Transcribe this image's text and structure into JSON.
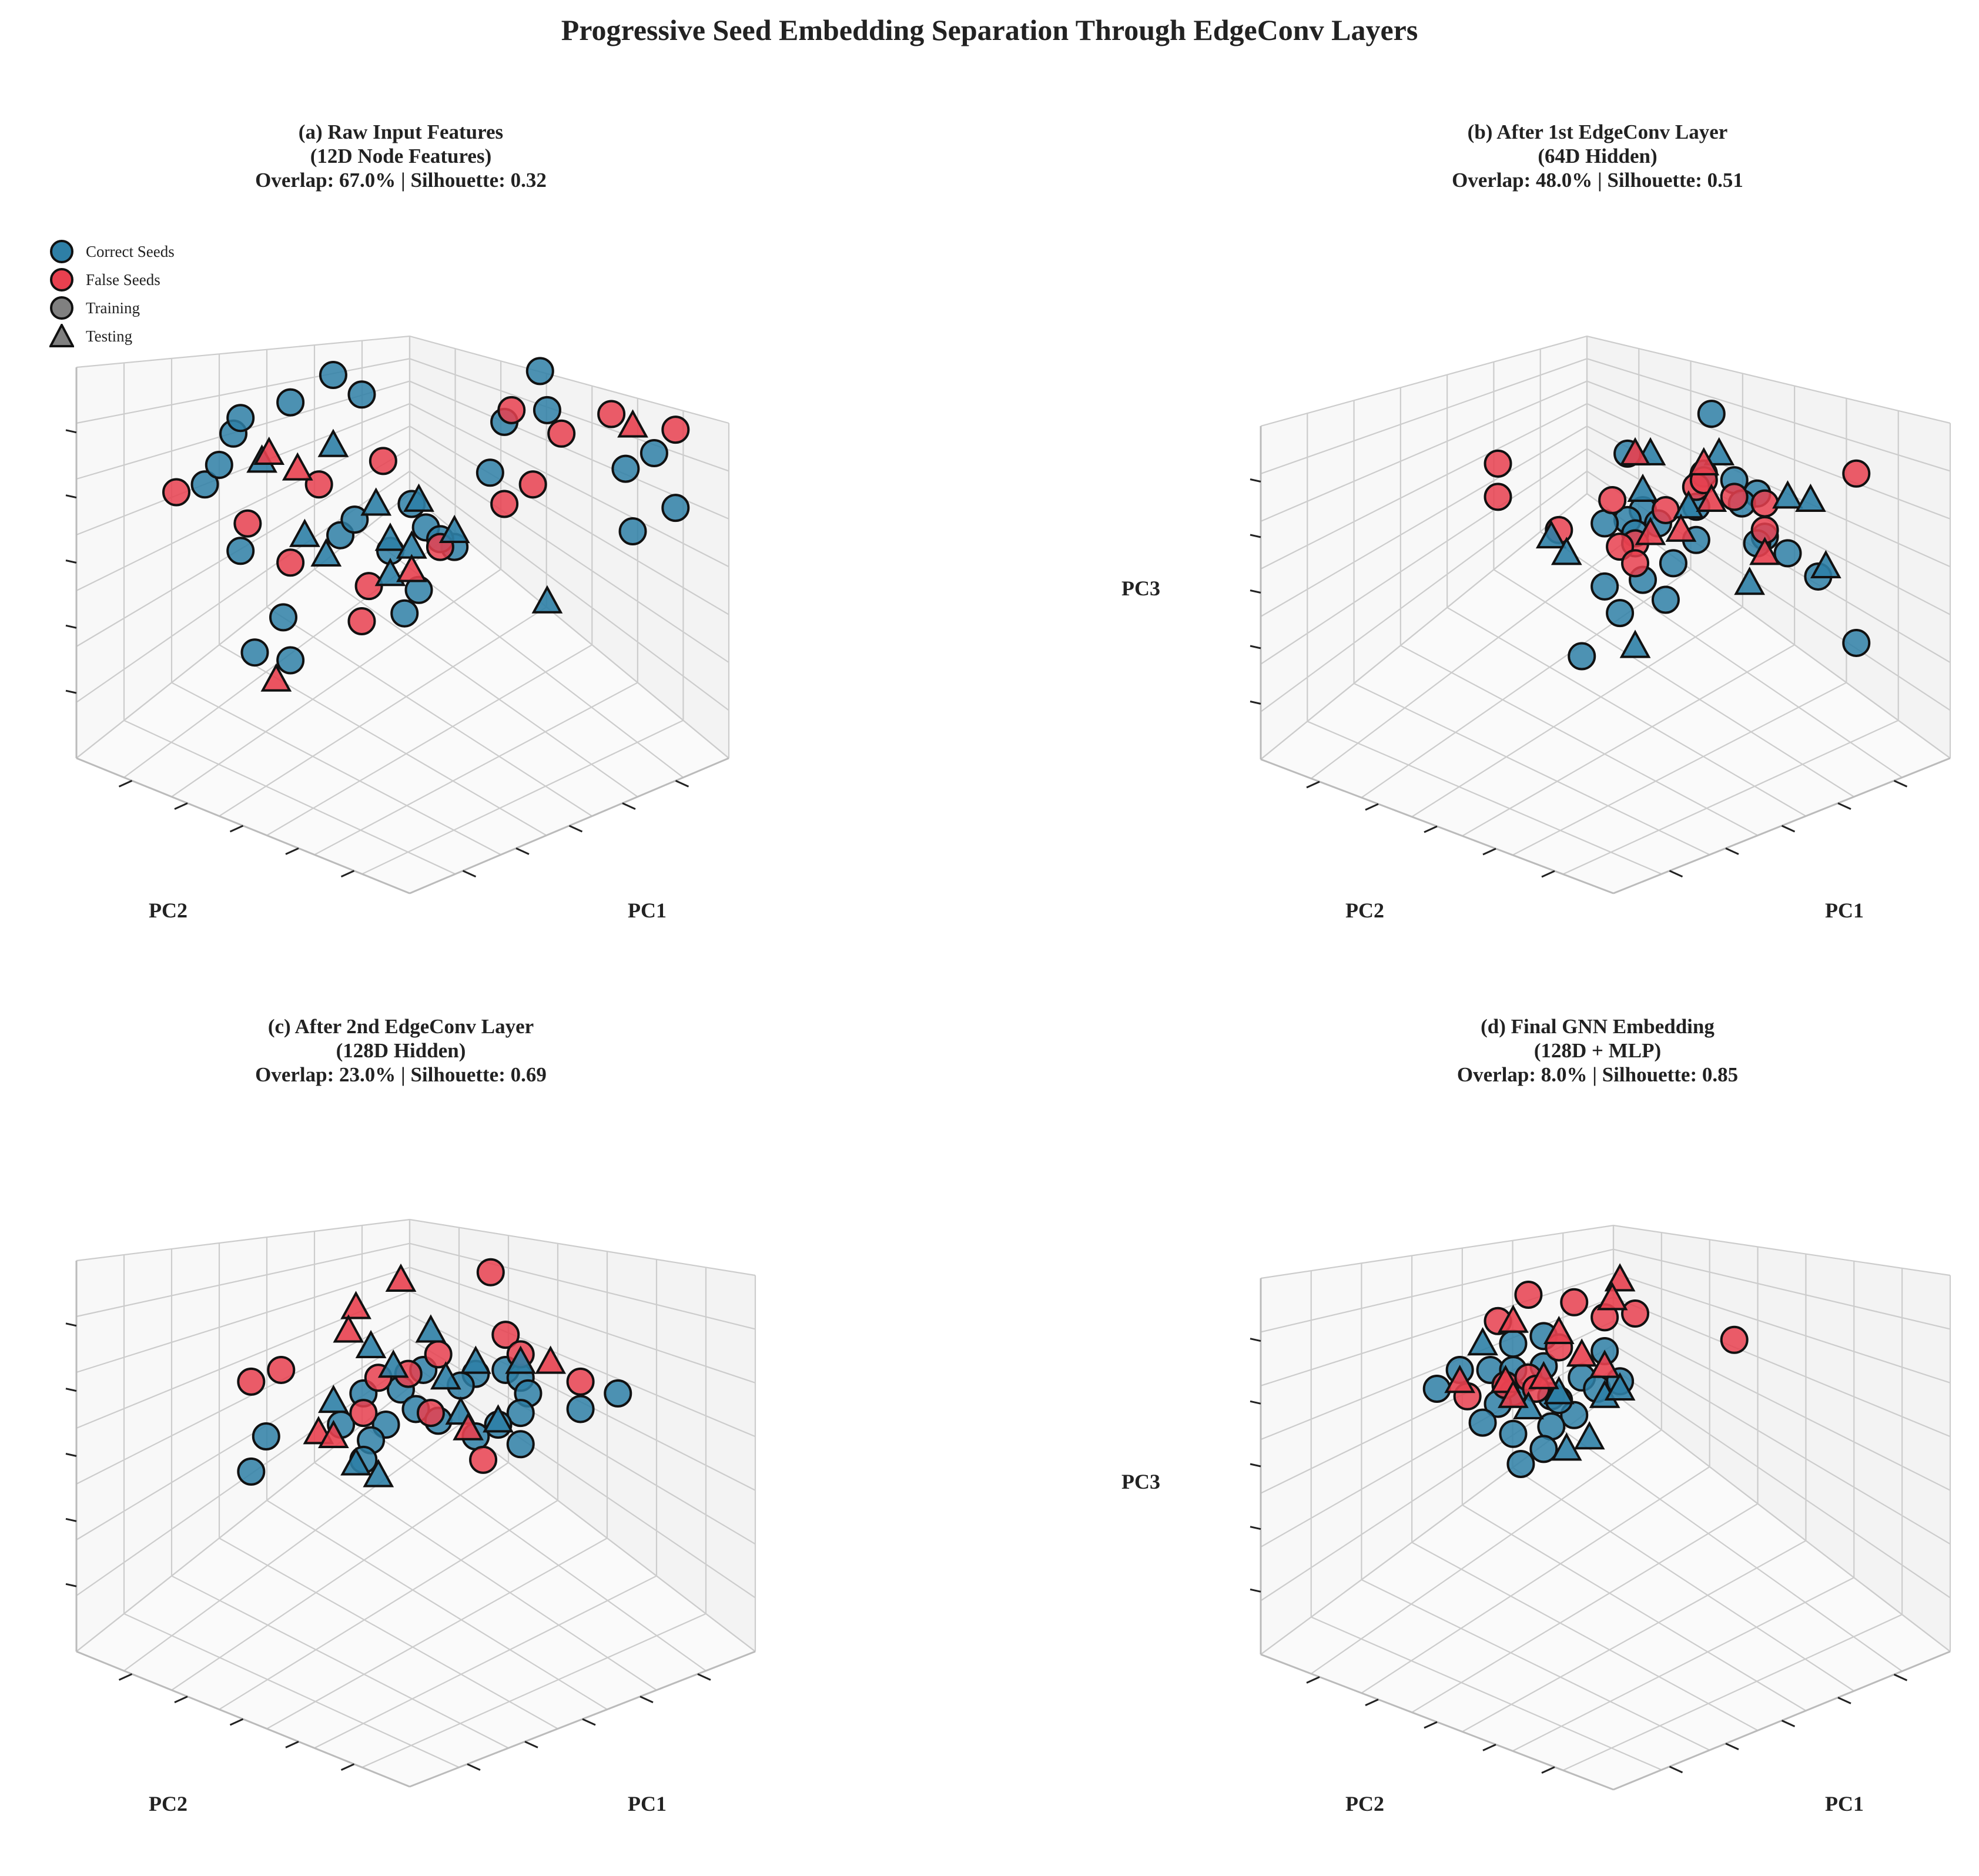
{
  "figure": {
    "title": "Progressive Seed Embedding Separation Through EdgeConv Layers"
  },
  "legend": {
    "correct_label": "Correct Seeds",
    "false_label": "False Seeds",
    "training_label": "Training",
    "testing_label": "Testing"
  },
  "colors": {
    "correct": "#2e7fa6",
    "false": "#e8404f",
    "neutral": "#808080",
    "edge": "#111111",
    "grid": "#cccccc",
    "pane": "#f8f8f8"
  },
  "panels": [
    {
      "title_line1": "(a) Raw Input Features",
      "title_line2": "(12D Node Features)",
      "title_line3": "Overlap: 67.0% | Silhouette: 0.32",
      "xlabel": "PC1",
      "ylabel": "PC2",
      "zlabel": "",
      "show_legend": true
    },
    {
      "title_line1": "(b) After 1st EdgeConv Layer",
      "title_line2": "(64D Hidden)",
      "title_line3": "Overlap: 48.0% | Silhouette: 0.51",
      "xlabel": "PC1",
      "ylabel": "PC2",
      "zlabel": "PC3",
      "show_legend": false
    },
    {
      "title_line1": "(c) After 2nd EdgeConv Layer",
      "title_line2": "(128D Hidden)",
      "title_line3": "Overlap: 23.0% | Silhouette: 0.69",
      "xlabel": "PC1",
      "ylabel": "PC2",
      "zlabel": "",
      "show_legend": false
    },
    {
      "title_line1": "(d) Final GNN Embedding",
      "title_line2": "(128D + MLP)",
      "title_line3": "Overlap: 8.0% | Silhouette: 0.85",
      "xlabel": "PC1",
      "ylabel": "PC2",
      "zlabel": "PC3",
      "show_legend": false
    }
  ],
  "chart_data": [
    {
      "type": "scatter",
      "projection": "3d",
      "title": "(a) Raw Input Features (12D Node Features) Overlap: 67.0% | Silhouette: 0.32",
      "xlabel": "PC1",
      "ylabel": "PC2",
      "zlabel": "",
      "view": "elev 20, azim 45",
      "series": [
        {
          "name": "Correct Seeds - Training",
          "marker": "circle",
          "points": [
            [
              3.2,
              2.2
            ],
            [
              3.4,
              2.8
            ],
            [
              3.0,
              3.8
            ],
            [
              3.9,
              3.9
            ],
            [
              3.3,
              5.0
            ],
            [
              2.3,
              4.2
            ],
            [
              3.5,
              4.4
            ],
            [
              2.5,
              4.6
            ],
            [
              1.5,
              2.1
            ],
            [
              1.6,
              1.0
            ],
            [
              0.4,
              5.5
            ],
            [
              0.6,
              6.0
            ],
            [
              0.8,
              6.8
            ],
            [
              0.9,
              7.2
            ],
            [
              1.6,
              7.6
            ],
            [
              2.2,
              8.3
            ],
            [
              2.6,
              7.8
            ],
            [
              1.1,
              1.2
            ],
            [
              0.9,
              3.8
            ],
            [
              4.6,
              7.1
            ],
            [
              5.2,
              7.4
            ],
            [
              5.1,
              8.4
            ],
            [
              6.7,
              6.3
            ],
            [
              6.3,
              5.9
            ],
            [
              7.0,
              4.9
            ],
            [
              6.4,
              4.3
            ],
            [
              4.4,
              5.8
            ],
            [
              3.7,
              4.1
            ]
          ]
        },
        {
          "name": "False Seeds - Training",
          "marker": "circle",
          "points": [
            [
              4.7,
              7.4
            ],
            [
              2.9,
              6.1
            ],
            [
              5.4,
              6.8
            ],
            [
              6.1,
              7.3
            ],
            [
              7.0,
              6.9
            ],
            [
              5.0,
              5.5
            ],
            [
              4.6,
              5.0
            ],
            [
              3.7,
              3.9
            ],
            [
              2.7,
              2.9
            ],
            [
              2.6,
              2.0
            ],
            [
              1.6,
              3.5
            ],
            [
              0.0,
              5.3
            ],
            [
              1.0,
              4.5
            ],
            [
              2.0,
              5.5
            ]
          ]
        },
        {
          "name": "Correct Seeds - Testing",
          "marker": "triangle",
          "points": [
            [
              1.2,
              6.1
            ],
            [
              1.8,
              4.2
            ],
            [
              2.1,
              3.7
            ],
            [
              2.8,
              5.0
            ],
            [
              3.0,
              4.1
            ],
            [
              3.3,
              3.9
            ],
            [
              3.4,
              5.1
            ],
            [
              3.9,
              4.3
            ],
            [
              2.2,
              6.5
            ],
            [
              5.2,
              2.5
            ],
            [
              3.0,
              3.2
            ]
          ]
        },
        {
          "name": "False Seeds - Testing",
          "marker": "triangle",
          "points": [
            [
              1.3,
              6.3
            ],
            [
              1.7,
              5.9
            ],
            [
              6.4,
              7.0
            ],
            [
              3.3,
              3.3
            ],
            [
              1.4,
              0.5
            ]
          ]
        }
      ]
    },
    {
      "type": "scatter",
      "projection": "3d",
      "title": "(b) After 1st EdgeConv Layer (64D Hidden) Overlap: 48.0% | Silhouette: 0.51",
      "xlabel": "PC1",
      "ylabel": "PC2",
      "zlabel": "PC3",
      "view": "elev 20, azim 45",
      "series": [
        {
          "name": "Correct Seeds - Training",
          "marker": "circle",
          "points": [
            [
              4.6,
              8.6
            ],
            [
              3.5,
              7.4
            ],
            [
              4.5,
              6.8
            ],
            [
              4.9,
              6.6
            ],
            [
              5.2,
              6.2
            ],
            [
              5.0,
              5.9
            ],
            [
              4.4,
              5.8
            ],
            [
              3.7,
              5.7
            ],
            [
              3.5,
              5.4
            ],
            [
              3.2,
              5.3
            ],
            [
              3.9,
              5.3
            ],
            [
              3.6,
              5.0
            ],
            [
              4.4,
              4.8
            ],
            [
              5.3,
              4.9
            ],
            [
              5.6,
              4.4
            ],
            [
              4.1,
              4.1
            ],
            [
              3.7,
              3.6
            ],
            [
              3.2,
              3.4
            ],
            [
              6.0,
              3.7
            ],
            [
              5.2,
              4.7
            ],
            [
              3.4,
              2.6
            ],
            [
              2.9,
              1.3
            ],
            [
              6.5,
              1.7
            ],
            [
              4.0,
              3.0
            ]
          ]
        },
        {
          "name": "False Seeds - Training",
          "marker": "circle",
          "points": [
            [
              1.8,
              7.1
            ],
            [
              1.8,
              6.1
            ],
            [
              4.4,
              6.4
            ],
            [
              4.5,
              6.6
            ],
            [
              3.3,
              6.0
            ],
            [
              4.9,
              6.1
            ],
            [
              5.3,
              5.9
            ],
            [
              4.0,
              5.7
            ],
            [
              5.3,
              5.1
            ],
            [
              3.6,
              4.7
            ],
            [
              2.6,
              5.1
            ],
            [
              3.4,
              4.6
            ],
            [
              3.6,
              4.1
            ],
            [
              6.5,
              6.8
            ]
          ]
        },
        {
          "name": "Correct Seeds - Testing",
          "marker": "triangle",
          "points": [
            [
              3.7,
              6.3
            ],
            [
              3.8,
              7.4
            ],
            [
              4.7,
              7.4
            ],
            [
              4.3,
              5.8
            ],
            [
              5.6,
              6.1
            ],
            [
              5.9,
              6.0
            ],
            [
              2.5,
              4.9
            ],
            [
              2.7,
              4.4
            ],
            [
              6.1,
              4.0
            ],
            [
              5.1,
              3.5
            ],
            [
              3.6,
              1.6
            ]
          ]
        },
        {
          "name": "False Seeds - Testing",
          "marker": "triangle",
          "points": [
            [
              3.6,
              7.4
            ],
            [
              4.5,
              7.1
            ],
            [
              4.6,
              6.0
            ],
            [
              3.8,
              5.0
            ],
            [
              4.2,
              5.1
            ],
            [
              5.3,
              4.4
            ]
          ]
        }
      ]
    },
    {
      "type": "scatter",
      "projection": "3d",
      "title": "(c) After 2nd EdgeConv Layer (128D Hidden) Overlap: 23.0% | Silhouette: 0.69",
      "xlabel": "PC1",
      "ylabel": "PC2",
      "zlabel": "",
      "view": "elev 20, azim 45",
      "series": [
        {
          "name": "Correct Seeds - Training",
          "marker": "circle",
          "points": [
            [
              3.3,
              5.7
            ],
            [
              4.0,
              5.6
            ],
            [
              4.4,
              5.7
            ],
            [
              4.6,
              5.5
            ],
            [
              3.8,
              5.3
            ],
            [
              3.0,
              5.2
            ],
            [
              2.5,
              5.1
            ],
            [
              4.7,
              5.1
            ],
            [
              4.6,
              4.6
            ],
            [
              3.2,
              4.7
            ],
            [
              3.5,
              4.4
            ],
            [
              2.8,
              4.3
            ],
            [
              4.0,
              4.0
            ],
            [
              4.3,
              4.3
            ],
            [
              4.6,
              3.8
            ],
            [
              2.6,
              3.9
            ],
            [
              2.2,
              4.3
            ],
            [
              2.5,
              3.4
            ],
            [
              1.2,
              4.0
            ],
            [
              1.0,
              3.1
            ],
            [
              5.9,
              5.1
            ],
            [
              5.4,
              4.7
            ]
          ]
        },
        {
          "name": "False Seeds - Training",
          "marker": "circle",
          "points": [
            [
              4.2,
              8.2
            ],
            [
              4.4,
              6.6
            ],
            [
              4.6,
              6.1
            ],
            [
              3.5,
              6.1
            ],
            [
              3.1,
              5.6
            ],
            [
              2.7,
              5.5
            ],
            [
              1.4,
              5.7
            ],
            [
              1.0,
              5.4
            ],
            [
              2.5,
              4.6
            ],
            [
              3.4,
              4.6
            ],
            [
              4.1,
              3.4
            ],
            [
              5.4,
              5.4
            ]
          ]
        },
        {
          "name": "Correct Seeds - Testing",
          "marker": "triangle",
          "points": [
            [
              3.4,
              6.7
            ],
            [
              2.6,
              6.3
            ],
            [
              2.9,
              5.8
            ],
            [
              4.6,
              5.9
            ],
            [
              4.0,
              5.9
            ],
            [
              3.6,
              5.5
            ],
            [
              2.1,
              4.9
            ],
            [
              4.3,
              4.4
            ],
            [
              2.7,
              3.0
            ],
            [
              2.4,
              3.3
            ],
            [
              3.8,
              4.6
            ]
          ]
        },
        {
          "name": "False Seeds - Testing",
          "marker": "triangle",
          "points": [
            [
              3.0,
              8.0
            ],
            [
              2.4,
              7.3
            ],
            [
              2.3,
              6.7
            ],
            [
              5.0,
              5.9
            ],
            [
              1.9,
              4.1
            ],
            [
              2.1,
              4.0
            ],
            [
              3.9,
              4.2
            ]
          ]
        }
      ]
    },
    {
      "type": "scatter",
      "projection": "3d",
      "title": "(d) Final GNN Embedding (128D + MLP) Overlap: 8.0% | Silhouette: 0.85",
      "xlabel": "PC1",
      "ylabel": "PC2",
      "zlabel": "PC3",
      "view": "elev 20, azim 45",
      "series": [
        {
          "name": "Correct Seeds - Training",
          "marker": "circle",
          "points": [
            [
              2.4,
              6.9
            ],
            [
              3.2,
              6.5
            ],
            [
              2.0,
              6.7
            ],
            [
              2.4,
              6.1
            ],
            [
              1.7,
              6.0
            ],
            [
              1.3,
              6.0
            ],
            [
              2.0,
              6.0
            ],
            [
              2.9,
              5.8
            ],
            [
              3.1,
              5.5
            ],
            [
              3.4,
              5.7
            ],
            [
              2.0,
              5.4
            ],
            [
              2.5,
              5.3
            ],
            [
              2.8,
              4.8
            ],
            [
              1.8,
              5.1
            ],
            [
              1.0,
              5.5
            ],
            [
              1.6,
              4.6
            ],
            [
              2.0,
              4.3
            ],
            [
              2.5,
              4.5
            ],
            [
              2.4,
              3.9
            ],
            [
              2.1,
              3.5
            ],
            [
              2.6,
              5.2
            ]
          ]
        },
        {
          "name": "False Seeds - Training",
          "marker": "circle",
          "points": [
            [
              3.2,
              7.4
            ],
            [
              2.8,
              7.8
            ],
            [
              3.6,
              7.5
            ],
            [
              2.2,
              8.0
            ],
            [
              1.8,
              7.3
            ],
            [
              2.6,
              6.6
            ],
            [
              1.4,
              5.3
            ],
            [
              1.9,
              5.6
            ],
            [
              2.2,
              5.8
            ],
            [
              2.3,
              5.5
            ],
            [
              4.9,
              6.8
            ]
          ]
        },
        {
          "name": "Correct Seeds - Testing",
          "marker": "triangle",
          "points": [
            [
              3.2,
              5.3
            ],
            [
              3.4,
              5.5
            ],
            [
              2.2,
              5.0
            ],
            [
              3.0,
              4.2
            ],
            [
              2.7,
              3.9
            ],
            [
              1.6,
              6.7
            ],
            [
              2.6,
              5.4
            ]
          ]
        },
        {
          "name": "False Seeds - Testing",
          "marker": "triangle",
          "points": [
            [
              3.4,
              8.4
            ],
            [
              3.3,
              7.9
            ],
            [
              2.0,
              7.3
            ],
            [
              2.6,
              7.0
            ],
            [
              2.9,
              6.4
            ],
            [
              1.3,
              5.7
            ],
            [
              1.9,
              5.7
            ],
            [
              2.4,
              5.8
            ],
            [
              2.0,
              5.3
            ],
            [
              3.2,
              6.1
            ]
          ]
        }
      ]
    }
  ]
}
